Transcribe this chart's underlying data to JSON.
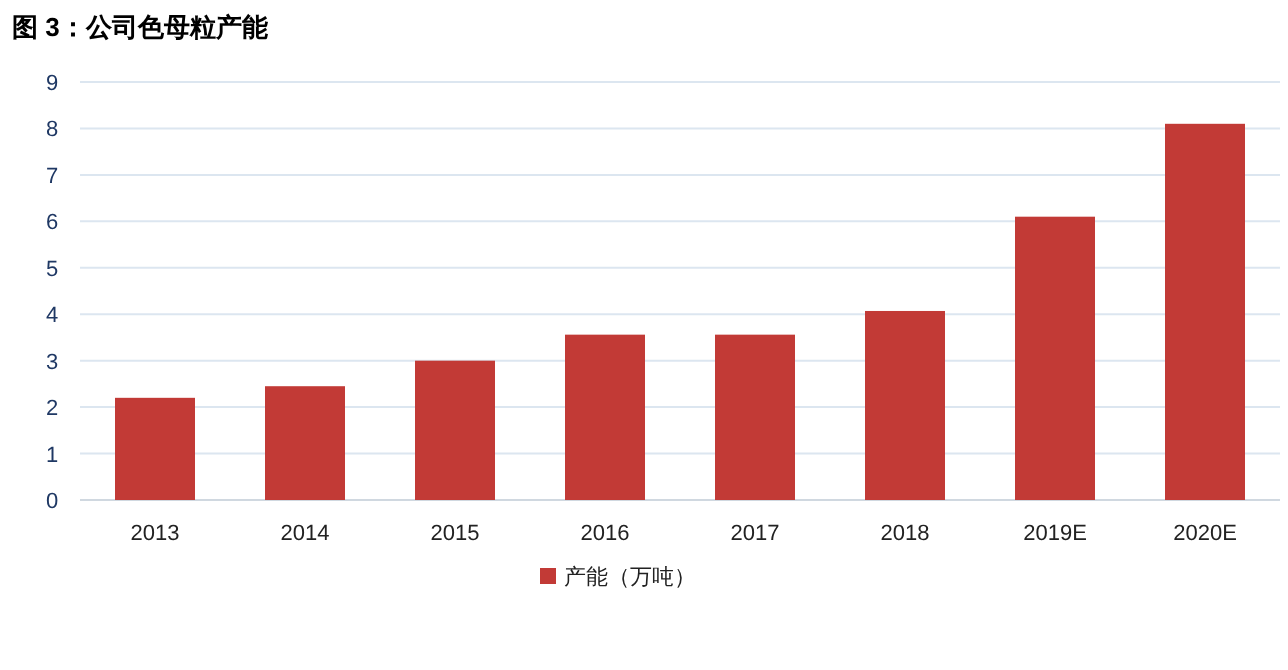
{
  "chart_data": {
    "type": "bar",
    "title": "图 3：公司色母粒产能",
    "categories": [
      "2013",
      "2014",
      "2015",
      "2016",
      "2017",
      "2018",
      "2019E",
      "2020E"
    ],
    "series": [
      {
        "name": "产能（万吨）",
        "color": "#c23a36",
        "values": [
          2.2,
          2.45,
          3.0,
          3.56,
          3.56,
          4.07,
          6.1,
          8.1
        ]
      }
    ],
    "ylim": [
      0,
      9
    ],
    "yticks": [
      0,
      1,
      2,
      3,
      4,
      5,
      6,
      7,
      8,
      9
    ],
    "grid": "y",
    "legend": "bottom"
  }
}
